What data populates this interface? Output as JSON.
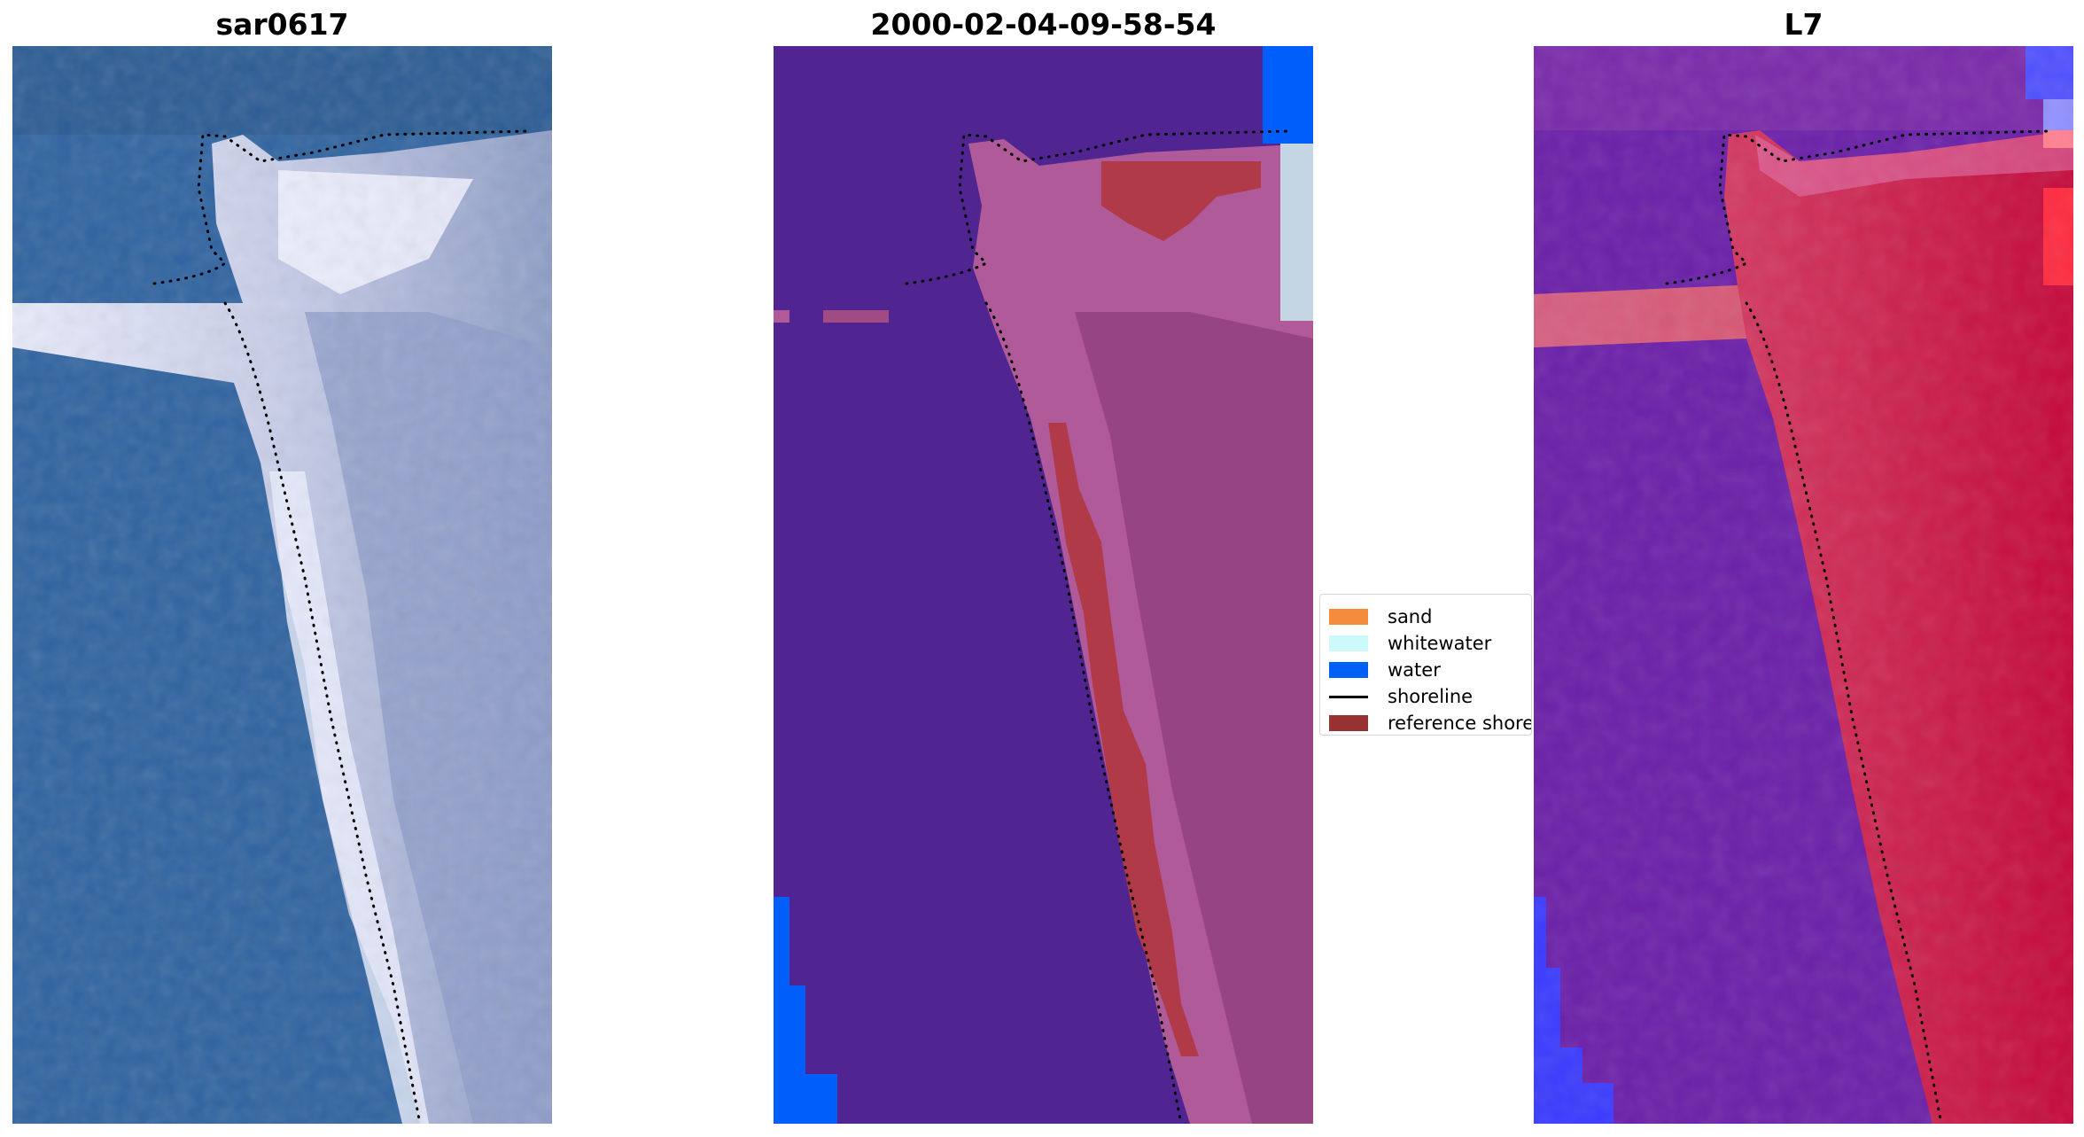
{
  "panels": [
    {
      "title": "sar0617",
      "kind": "rgb-satellite-image",
      "colors": {
        "water": "#2f63a0",
        "sand": "#c8d0ea",
        "bright": "#f4f4ff",
        "shoreline_dots": "#000000"
      }
    },
    {
      "title": "2000-02-04-09-58-54",
      "kind": "classified-image",
      "colors": {
        "background": "#512591",
        "land": "#b05a9a",
        "reference": "#b03a48",
        "water": "#005ffa",
        "whitewater": "#c4d6e4"
      }
    },
    {
      "title": "L7",
      "kind": "false-color-image",
      "colors": {
        "water": "#6a1fa8",
        "land": "#c4093a",
        "blue_patch": "#3a3aff",
        "bright_red": "#ff2a40"
      }
    }
  ],
  "legend": {
    "items": [
      {
        "label": "sand",
        "swatch_color": "#f48c3c",
        "type": "patch"
      },
      {
        "label": "whitewater",
        "swatch_color": "#ccf9f9",
        "type": "patch"
      },
      {
        "label": "water",
        "swatch_color": "#0060f5",
        "type": "patch"
      },
      {
        "label": "shoreline",
        "swatch_color": "#000000",
        "type": "line"
      },
      {
        "label": "reference shoreline",
        "swatch_color": "#983232",
        "type": "patch"
      }
    ]
  }
}
